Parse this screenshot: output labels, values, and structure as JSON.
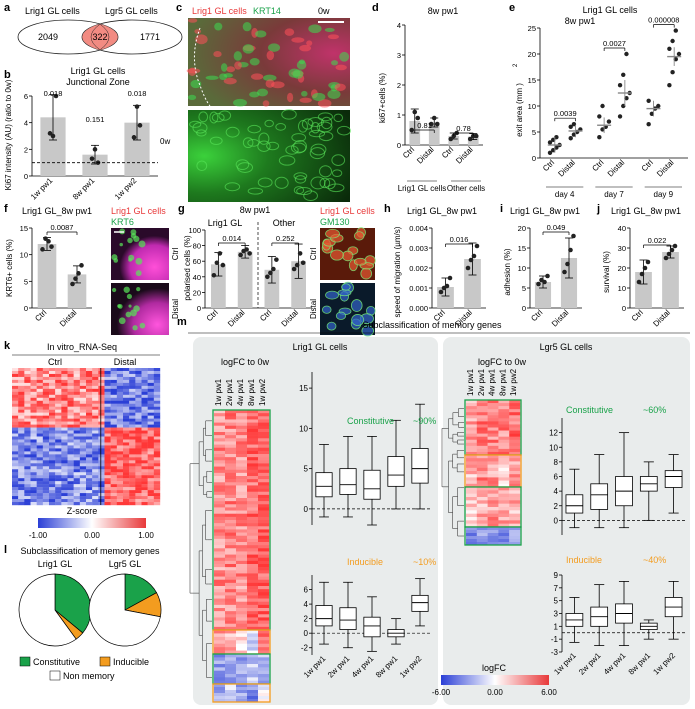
{
  "panels": {
    "a": {
      "letter": "a",
      "left_label": "Lrig1 GL cells",
      "right_label": "Lgr5 GL cells",
      "left_only": "2049",
      "overlap": "322",
      "right_only": "1771"
    },
    "b": {
      "letter": "b",
      "title": "Lrig1 GL cells",
      "subtitle": "Junctional Zone",
      "ylabel": "Ki67 intensity (AU) (ratio to 0w)",
      "ref_label": "0w"
    },
    "c": {
      "letter": "c",
      "label_red": "Lrig1 GL cells",
      "label_green": "KRT14",
      "label_time": "0w"
    },
    "d": {
      "letter": "d",
      "title": "8w pw1",
      "ylabel": "ki67+cells (%)",
      "group1": "Lrig1 GL cells",
      "group2": "Other cells"
    },
    "e": {
      "letter": "e",
      "title": "Lrig1 GL  cells",
      "subtitle": "8w pw1",
      "ylabel": "exit area  (mm  )",
      "exponent": "2"
    },
    "f": {
      "letter": "f",
      "title": "Lrig1 GL_8w pw1",
      "ylabel": "KRT6+ cells (%)",
      "img_red": "Lrig1 GL cells",
      "img_green": "KRT6",
      "row1": "Ctrl",
      "row2": "Distal"
    },
    "g": {
      "letter": "g",
      "title": "8w pw1",
      "group1": "Lrig1 GL",
      "group2": "Other",
      "ylabel": "polarised cells (%)",
      "img_red": "Lrig1 GL cells",
      "img_green": "GM130",
      "row1": "Ctrl",
      "row2": "Distal"
    },
    "h": {
      "letter": "h",
      "title": "Lrig1 GL_8w pw1",
      "ylabel": "speed of migration (µm/s)"
    },
    "i": {
      "letter": "i",
      "title": "Lrig1 GL_8w pw1",
      "ylabel": "adhesion (%)"
    },
    "j": {
      "letter": "j",
      "title": "Lrig1 GL_8w pw1",
      "ylabel": "survival (%)"
    },
    "k": {
      "letter": "k",
      "title": "In vitro_RNA-Seq",
      "col1": "Ctrl",
      "col2": "Distal",
      "scale_label": "Z-score",
      "scale_min": "-1.00",
      "scale_mid": "0.00",
      "scale_max": "1.00"
    },
    "l": {
      "letter": "l",
      "title": "Subclassification of memory genes",
      "pie1": "Lrig1 GL",
      "pie2": "Lgr5 GL",
      "legend": [
        "Constitutive",
        "Inducible",
        "Non memory"
      ]
    },
    "m": {
      "letter": "m",
      "title": "Subclassification of memory genes",
      "left_title": "Lrig1 GL cells",
      "right_title": "Lgr5 GL cells",
      "logfc_label": "logFC to 0w",
      "constitutive": "Constitutive",
      "inducible": "Inducible",
      "lrig1_const_pct": "~90%",
      "lrig1_ind_pct": "~10%",
      "lgr5_const_pct": "~60%",
      "lgr5_ind_pct": "~40%",
      "scale_label": "logFC",
      "scale_min": "-6.00",
      "scale_mid": "0.00",
      "scale_max": "6.00",
      "timepoints": [
        "1w pw1",
        "2w pw1",
        "4w pw1",
        "8w pw1",
        "1w pw2"
      ]
    }
  },
  "colors": {
    "red": "#e8393a",
    "green": "#1aa24a",
    "orange": "#f39c1f",
    "blue": "#2b3fd6",
    "salmon": "#f28b82",
    "gray_bar": "#c8c8c8"
  },
  "chart_data": [
    {
      "panel": "b",
      "type": "bar",
      "categories": [
        "1w pw1",
        "8w pw1",
        "1w pw2"
      ],
      "values": [
        4.4,
        1.6,
        4.0
      ],
      "errors": [
        1.7,
        0.7,
        1.3
      ],
      "points": [
        [
          3.2,
          3.0,
          6.0
        ],
        [
          1.3,
          2.0,
          1.0
        ],
        [
          2.9,
          5.2,
          3.8
        ]
      ],
      "pvalues": [
        "0.018",
        "0.151",
        "0.018"
      ],
      "reference": 1,
      "ylim": [
        0,
        6
      ],
      "yticks": [
        0,
        2,
        4,
        6
      ]
    },
    {
      "panel": "d",
      "type": "bar",
      "categories": [
        "Ctrl",
        "Distal",
        "Ctrl",
        "Distal"
      ],
      "values": [
        0.8,
        0.75,
        0.3,
        0.28
      ],
      "errors": [
        0.4,
        0.15,
        0.1,
        0.1
      ],
      "points": [
        [
          0.5,
          1.1,
          0.9
        ],
        [
          0.7,
          0.9,
          0.7
        ],
        [
          0.2,
          0.3,
          0.4
        ],
        [
          0.2,
          0.3,
          0.3
        ]
      ],
      "pvalues": [
        "0.81",
        "0.78"
      ],
      "ylim": [
        0,
        4
      ],
      "yticks": [
        0,
        1,
        2,
        3,
        4
      ]
    },
    {
      "panel": "e",
      "type": "scatter",
      "groups": [
        "day 4",
        "day 7",
        "day 9"
      ],
      "series": [
        "Ctrl",
        "Distal"
      ],
      "means": [
        [
          2.5,
          5.2
        ],
        [
          6.3,
          12.5
        ],
        [
          9.5,
          19.5
        ]
      ],
      "errors": [
        [
          1.5,
          1.2
        ],
        [
          1.5,
          2.5
        ],
        [
          1.5,
          1.8
        ]
      ],
      "points": [
        [
          [
            1.0,
            1.5,
            2.0,
            2.5,
            3.0,
            3.5,
            4.0
          ],
          [
            3.8,
            4.5,
            5.0,
            5.5,
            6.0,
            6.5
          ]
        ],
        [
          [
            4.0,
            5.5,
            6.0,
            7.0,
            8.0,
            10.0
          ],
          [
            8.0,
            10.0,
            11.5,
            12.5,
            14.0,
            16.0,
            20.0
          ]
        ],
        [
          [
            6.5,
            8.5,
            9.5,
            10.0,
            11.0
          ],
          [
            14.0,
            16.5,
            19.0,
            20.0,
            21.0,
            22.5,
            24.5
          ]
        ]
      ],
      "pvalues": [
        "0.0039",
        "0.0027",
        "0.000008"
      ],
      "ylim": [
        0,
        25
      ],
      "yticks": [
        0,
        5,
        10,
        15,
        20,
        25
      ]
    },
    {
      "panel": "f",
      "type": "bar",
      "categories": [
        "Ctrl",
        "Distal"
      ],
      "values": [
        12.0,
        6.3
      ],
      "errors": [
        1.2,
        1.6
      ],
      "points": [
        [
          11.0,
          13.0,
          12.5,
          11.5
        ],
        [
          4.5,
          5.5,
          6.5,
          8.0
        ]
      ],
      "pvalues": [
        "0.0087"
      ],
      "ylim": [
        0,
        15
      ],
      "yticks": [
        0,
        5,
        10,
        15
      ]
    },
    {
      "panel": "g",
      "type": "bar",
      "categories": [
        "Ctrl",
        "Distal",
        "Ctrl",
        "Distal"
      ],
      "values": [
        56,
        72,
        49,
        60
      ],
      "errors": [
        15,
        8,
        17,
        22
      ],
      "points": [
        [
          42,
          58,
          70,
          55
        ],
        [
          68,
          73,
          75,
          70
        ],
        [
          40,
          45,
          50,
          62
        ],
        [
          50,
          55,
          70,
          58
        ]
      ],
      "pvalues": [
        "0.014",
        "0.252"
      ],
      "ylim": [
        0,
        100
      ],
      "yticks": [
        0,
        20,
        40,
        60,
        80,
        100
      ]
    },
    {
      "panel": "h",
      "type": "bar",
      "categories": [
        "Ctrl",
        "Distal"
      ],
      "values": [
        0.00105,
        0.00245
      ],
      "errors": [
        0.00045,
        0.0008
      ],
      "points": [
        [
          0.0008,
          0.001,
          0.0011,
          0.0015
        ],
        [
          0.002,
          0.0024,
          0.0026,
          0.0031
        ]
      ],
      "pvalues": [
        "0.016"
      ],
      "ylim": [
        0,
        0.004
      ],
      "yticks": [
        0,
        0.001,
        0.002,
        0.003,
        0.004
      ],
      "yticklabels": [
        "0.000",
        "0.001",
        "0.002",
        "0.003",
        "0.004"
      ]
    },
    {
      "panel": "i",
      "type": "bar",
      "categories": [
        "Ctrl",
        "Distal"
      ],
      "values": [
        6.5,
        12.5
      ],
      "errors": [
        1.5,
        5.0
      ],
      "points": [
        [
          6.0,
          7.0,
          6.5,
          8.0
        ],
        [
          9.0,
          11.0,
          14.5,
          18.0
        ]
      ],
      "pvalues": [
        "0.049"
      ],
      "ylim": [
        0,
        20
      ],
      "yticks": [
        0,
        5,
        10,
        15,
        20
      ]
    },
    {
      "panel": "j",
      "type": "bar",
      "categories": [
        "Ctrl",
        "Distal"
      ],
      "values": [
        18,
        28
      ],
      "errors": [
        6,
        3
      ],
      "points": [
        [
          13,
          17,
          20,
          23
        ],
        [
          25,
          27,
          29,
          31
        ]
      ],
      "pvalues": [
        "0.022"
      ],
      "ylim": [
        0,
        40
      ],
      "yticks": [
        0,
        10,
        20,
        30,
        40
      ]
    },
    {
      "panel": "l",
      "type": "pie",
      "pies": [
        {
          "name": "Lrig1 GL",
          "slices": {
            "Constitutive": 36,
            "Inducible": 4,
            "Non memory": 60
          }
        },
        {
          "name": "Lgr5 GL",
          "slices": {
            "Constitutive": 17,
            "Inducible": 11,
            "Non memory": 72
          }
        }
      ]
    },
    {
      "panel": "m-lrig1-constitutive",
      "type": "box",
      "categories": [
        "1w pw1",
        "2w pw1",
        "4w pw1",
        "8w pw1",
        "1w pw2"
      ],
      "boxes": [
        [
          -1,
          1.5,
          2.8,
          4.5,
          8
        ],
        [
          -1,
          1.8,
          3.0,
          5.0,
          9
        ],
        [
          -2,
          1.2,
          2.5,
          4.8,
          9
        ],
        [
          0,
          2.8,
          4.2,
          6.5,
          11
        ],
        [
          0,
          3.2,
          5.0,
          7.5,
          13
        ]
      ],
      "ylim": [
        -2,
        17
      ],
      "yticks": [
        0,
        5,
        10,
        15
      ]
    },
    {
      "panel": "m-lrig1-inducible",
      "type": "box",
      "categories": [
        "1w pw1",
        "2w pw1",
        "4w pw1",
        "8w pw1",
        "1w pw2"
      ],
      "boxes": [
        [
          -1.5,
          1.0,
          2.0,
          3.8,
          7
        ],
        [
          -2,
          0.5,
          1.8,
          3.5,
          7
        ],
        [
          -2.5,
          -0.5,
          1.0,
          2.2,
          5
        ],
        [
          -1.5,
          -0.5,
          0,
          0.5,
          2
        ],
        [
          1,
          3.0,
          4.2,
          5.2,
          7.5
        ]
      ],
      "ylim": [
        -3,
        8
      ],
      "yticks": [
        -2,
        0,
        2,
        4,
        6
      ]
    },
    {
      "panel": "m-lgr5-constitutive",
      "type": "box",
      "categories": [
        "1w pw1",
        "2w pw1",
        "4w pw1",
        "8w pw1",
        "1w pw2"
      ],
      "boxes": [
        [
          -1,
          1,
          2,
          3.5,
          7
        ],
        [
          -1,
          1.5,
          3.5,
          5,
          9
        ],
        [
          -1,
          2,
          4,
          6,
          12
        ],
        [
          0,
          4,
          5,
          6,
          8
        ],
        [
          1,
          4.5,
          6,
          6.8,
          9
        ]
      ],
      "ylim": [
        -2,
        14
      ],
      "yticks": [
        0,
        2,
        4,
        6,
        8,
        10,
        12
      ]
    },
    {
      "panel": "m-lgr5-inducible",
      "type": "box",
      "categories": [
        "1w pw1",
        "2w pw1",
        "4w pw1",
        "8w pw1",
        "1w pw2"
      ],
      "boxes": [
        [
          -1.5,
          1,
          2,
          3,
          5.5
        ],
        [
          -2,
          1,
          2.5,
          4,
          7.5
        ],
        [
          -2,
          1.5,
          3,
          4.5,
          8
        ],
        [
          -1,
          0.5,
          1,
          1.5,
          2
        ],
        [
          -1,
          2.5,
          4,
          5.5,
          8
        ]
      ],
      "ylim": [
        -3,
        9
      ],
      "yticks": [
        -3,
        -1,
        1,
        3,
        5,
        7,
        9
      ]
    }
  ]
}
